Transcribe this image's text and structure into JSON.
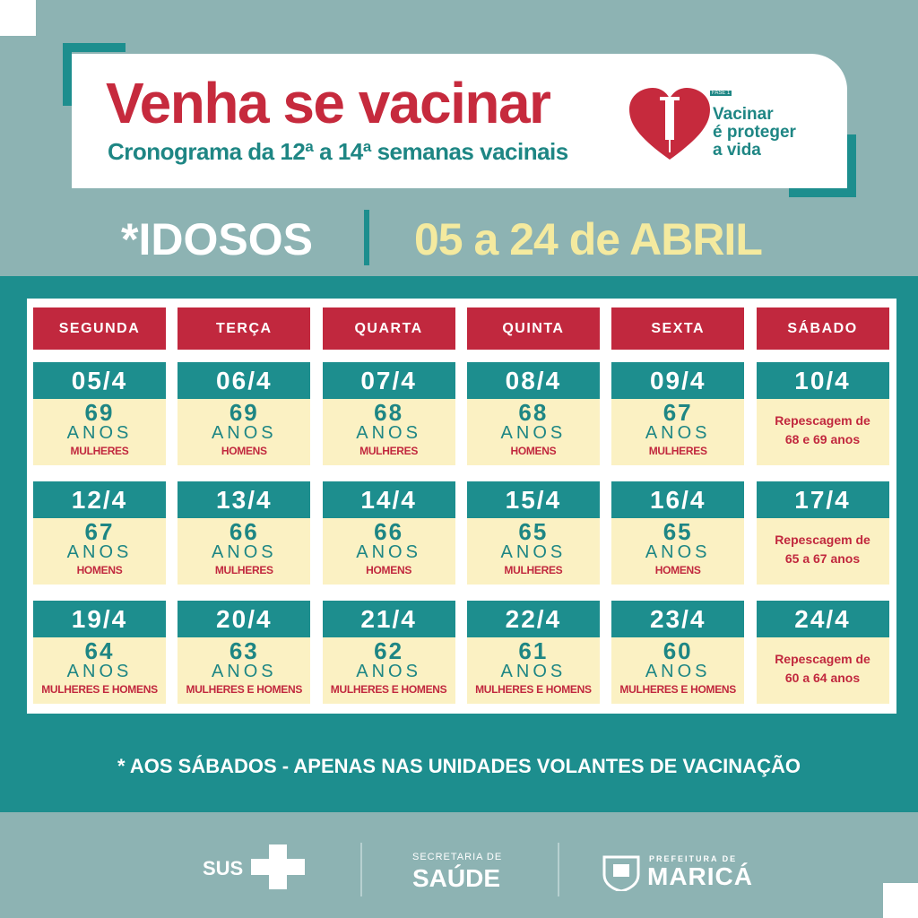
{
  "header": {
    "title": "Venha se vacinar",
    "subtitle": "Cronograma da 12ª a 14ª semanas vacinais",
    "logo": {
      "phase": "FASE 1",
      "tagline": [
        "Vacinar",
        "é proteger",
        "a vida"
      ]
    }
  },
  "banner": {
    "group": "*IDOSOS",
    "period": "05 a 24 de ABRIL"
  },
  "schedule": {
    "days": [
      "SEGUNDA",
      "TERÇA",
      "QUARTA",
      "QUINTA",
      "SEXTA",
      "SÁBADO"
    ],
    "weeks": [
      [
        {
          "date": "05/4",
          "age": 69,
          "unit": "ANOS",
          "group": "MULHERES"
        },
        {
          "date": "06/4",
          "age": 69,
          "unit": "ANOS",
          "group": "HOMENS"
        },
        {
          "date": "07/4",
          "age": 68,
          "unit": "ANOS",
          "group": "MULHERES"
        },
        {
          "date": "08/4",
          "age": 68,
          "unit": "ANOS",
          "group": "HOMENS"
        },
        {
          "date": "09/4",
          "age": 67,
          "unit": "ANOS",
          "group": "MULHERES"
        },
        {
          "date": "10/4",
          "note": [
            "Repescagem de",
            "68 e 69 anos"
          ]
        }
      ],
      [
        {
          "date": "12/4",
          "age": 67,
          "unit": "ANOS",
          "group": "HOMENS"
        },
        {
          "date": "13/4",
          "age": 66,
          "unit": "ANOS",
          "group": "MULHERES"
        },
        {
          "date": "14/4",
          "age": 66,
          "unit": "ANOS",
          "group": "HOMENS"
        },
        {
          "date": "15/4",
          "age": 65,
          "unit": "ANOS",
          "group": "MULHERES"
        },
        {
          "date": "16/4",
          "age": 65,
          "unit": "ANOS",
          "group": "HOMENS"
        },
        {
          "date": "17/4",
          "note": [
            "Repescagem de",
            "65 a 67 anos"
          ]
        }
      ],
      [
        {
          "date": "19/4",
          "age": 64,
          "unit": "ANOS",
          "group": "MULHERES E HOMENS"
        },
        {
          "date": "20/4",
          "age": 63,
          "unit": "ANOS",
          "group": "MULHERES E HOMENS"
        },
        {
          "date": "21/4",
          "age": 62,
          "unit": "ANOS",
          "group": "MULHERES E HOMENS"
        },
        {
          "date": "22/4",
          "age": 61,
          "unit": "ANOS",
          "group": "MULHERES E HOMENS"
        },
        {
          "date": "23/4",
          "age": 60,
          "unit": "ANOS",
          "group": "MULHERES E HOMENS"
        },
        {
          "date": "24/4",
          "note": [
            "Repescagem de",
            "60 a 64 anos"
          ]
        }
      ]
    ]
  },
  "footnote": "* AOS SÁBADOS  - APENAS NAS UNIDADES VOLANTES DE VACINAÇÃO",
  "footer": {
    "sus": "SUS",
    "secretaria": [
      "SECRETARIA DE",
      "SAÚDE"
    ],
    "prefeitura": [
      "PREFEITURA DE",
      "MARICÁ"
    ]
  }
}
